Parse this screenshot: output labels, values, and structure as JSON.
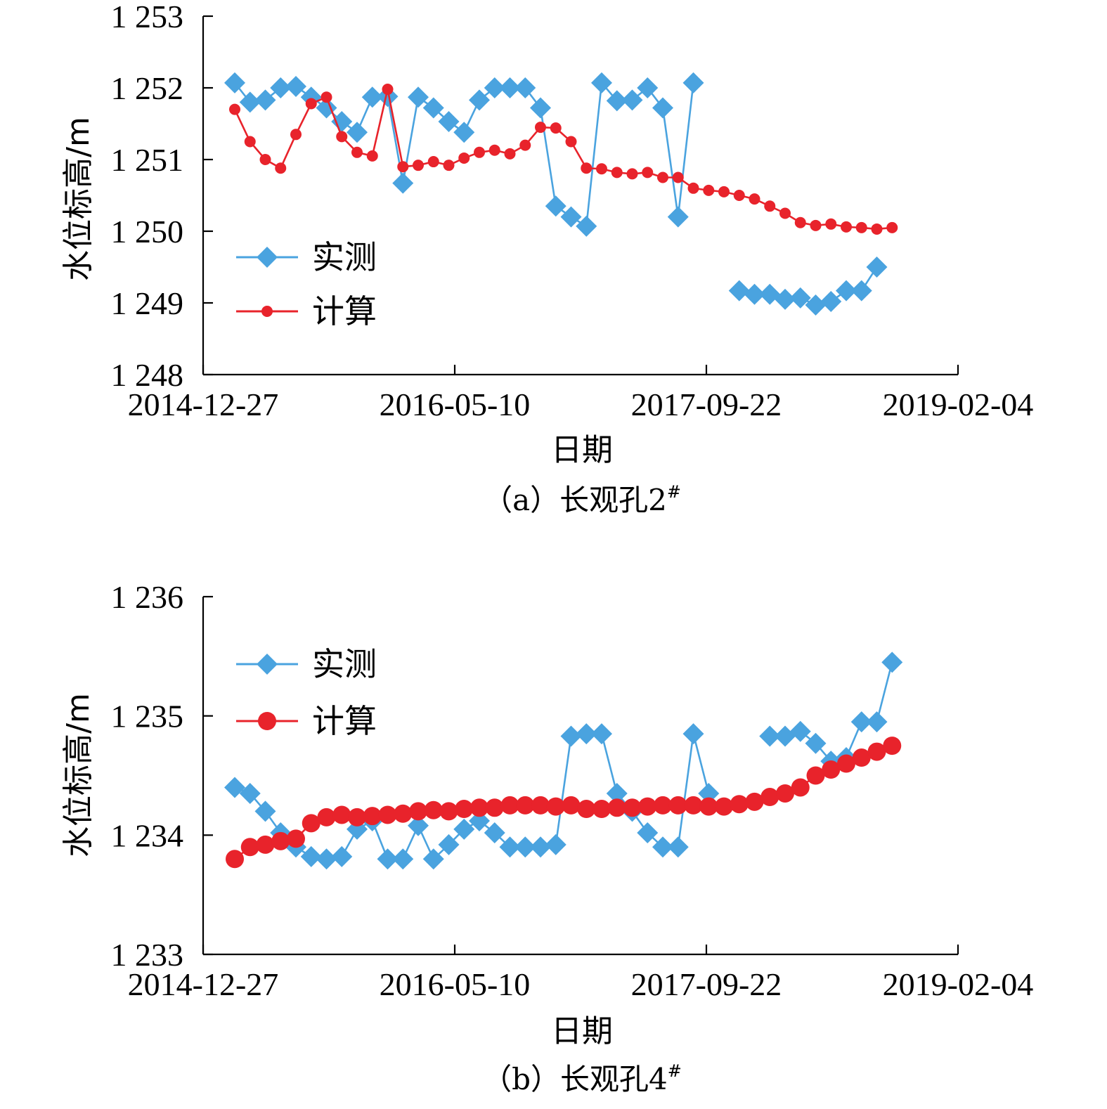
{
  "colors": {
    "observed": "#4aa3df",
    "computed": "#e8232b"
  },
  "chart_data": [
    {
      "type": "line",
      "caption": "（a）长观孔2",
      "caption_sup": "#",
      "xlabel": "日期",
      "ylabel": "水位标高/m",
      "x_tick_labels": [
        "2014-12-27",
        "2016-05-10",
        "2017-09-22",
        "2019-02-04"
      ],
      "y_tick_labels": [
        "1 248",
        "1 249",
        "1 250",
        "1 251",
        "1 252",
        "1 253"
      ],
      "ylim": [
        1248,
        1253
      ],
      "grid": false,
      "legend_position": "center-left",
      "series": [
        {
          "name": "实测",
          "marker": "diamond",
          "values": [
            1252.07,
            1251.8,
            1251.83,
            1252.0,
            1252.02,
            1251.87,
            1251.72,
            1251.53,
            1251.38,
            1251.87,
            1251.88,
            1250.67,
            1251.87,
            1251.72,
            1251.53,
            1251.38,
            1251.83,
            1252.0,
            1252.0,
            1252.0,
            1251.72,
            1250.35,
            1250.2,
            1250.07,
            1252.07,
            1251.82,
            1251.83,
            1252.0,
            1251.72,
            1250.2,
            1252.07,
            null,
            null,
            1249.17,
            1249.12,
            1249.12,
            1249.05,
            1249.07,
            1248.97,
            1249.02,
            1249.17,
            1249.17,
            1249.5,
            null
          ],
          "marker_size": 15
        },
        {
          "name": "计算",
          "marker": "circle",
          "values": [
            1251.7,
            1251.25,
            1251.0,
            1250.88,
            1251.35,
            1251.78,
            1251.87,
            1251.32,
            1251.1,
            1251.05,
            1251.98,
            1250.9,
            1250.92,
            1250.97,
            1250.92,
            1251.02,
            1251.1,
            1251.13,
            1251.08,
            1251.2,
            1251.45,
            1251.44,
            1251.25,
            1250.88,
            1250.87,
            1250.82,
            1250.8,
            1250.82,
            1250.75,
            1250.75,
            1250.6,
            1250.57,
            1250.55,
            1250.5,
            1250.45,
            1250.35,
            1250.25,
            1250.12,
            1250.08,
            1250.1,
            1250.06,
            1250.05,
            1250.03,
            1250.05
          ],
          "marker_size": 8
        }
      ]
    },
    {
      "type": "line",
      "caption": "（b）长观孔4",
      "caption_sup": "#",
      "xlabel": "日期",
      "ylabel": "水位标高/m",
      "x_tick_labels": [
        "2014-12-27",
        "2016-05-10",
        "2017-09-22",
        "2019-02-04"
      ],
      "y_tick_labels": [
        "1 233",
        "1 234",
        "1 235",
        "1 236"
      ],
      "ylim": [
        1233,
        1236
      ],
      "grid": false,
      "legend_position": "top-left",
      "series": [
        {
          "name": "实测",
          "marker": "diamond",
          "values": [
            1234.4,
            1234.35,
            1234.2,
            1234.02,
            1233.9,
            1233.82,
            1233.8,
            1233.82,
            1234.05,
            1234.12,
            1233.8,
            1233.8,
            1234.08,
            1233.8,
            1233.92,
            1234.05,
            1234.12,
            1234.02,
            1233.9,
            1233.9,
            1233.9,
            1233.92,
            1234.83,
            1234.85,
            1234.85,
            1234.35,
            1234.2,
            1234.02,
            1233.9,
            1233.9,
            1234.85,
            1234.35,
            null,
            null,
            null,
            1234.83,
            1234.83,
            1234.87,
            1234.77,
            1234.62,
            1234.65,
            1234.95,
            1234.95,
            1235.45
          ],
          "marker_size": 15
        },
        {
          "name": "计算",
          "marker": "circle",
          "values": [
            1233.8,
            1233.9,
            1233.92,
            1233.95,
            1233.97,
            1234.1,
            1234.15,
            1234.17,
            1234.15,
            1234.16,
            1234.17,
            1234.18,
            1234.2,
            1234.21,
            1234.2,
            1234.22,
            1234.23,
            1234.23,
            1234.25,
            1234.25,
            1234.25,
            1234.24,
            1234.25,
            1234.22,
            1234.22,
            1234.23,
            1234.23,
            1234.24,
            1234.25,
            1234.25,
            1234.25,
            1234.24,
            1234.24,
            1234.26,
            1234.28,
            1234.32,
            1234.35,
            1234.4,
            1234.5,
            1234.55,
            1234.6,
            1234.65,
            1234.7,
            1234.75
          ],
          "marker_size": 13
        }
      ]
    }
  ]
}
